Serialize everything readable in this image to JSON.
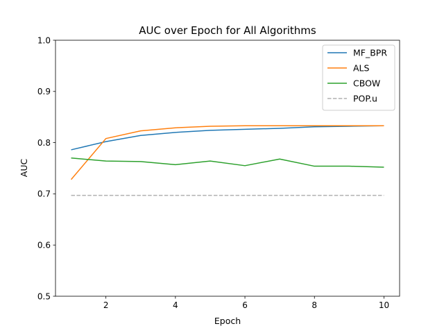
{
  "chart_data": {
    "type": "line",
    "title": "AUC over Epoch for All Algorithms",
    "xlabel": "Epoch",
    "ylabel": "AUC",
    "xlim": [
      0.55,
      10.45
    ],
    "ylim": [
      0.5,
      1.0
    ],
    "xticks": [
      2,
      4,
      6,
      8,
      10
    ],
    "yticks": [
      0.5,
      0.6,
      0.7,
      0.8,
      0.9,
      1.0
    ],
    "xtick_labels": [
      "2",
      "4",
      "6",
      "8",
      "10"
    ],
    "ytick_labels": [
      "0.5",
      "0.6",
      "0.7",
      "0.8",
      "0.9",
      "1.0"
    ],
    "grid": false,
    "legend_position": "top-right",
    "x": [
      1,
      2,
      3,
      4,
      5,
      6,
      7,
      8,
      9,
      10
    ],
    "series": [
      {
        "name": "MF_BPR",
        "color": "#1f77b4",
        "dash": "solid",
        "values": [
          0.786,
          0.802,
          0.814,
          0.82,
          0.824,
          0.826,
          0.828,
          0.831,
          0.832,
          0.833
        ]
      },
      {
        "name": "ALS",
        "color": "#ff7f0e",
        "dash": "solid",
        "values": [
          0.728,
          0.808,
          0.823,
          0.829,
          0.832,
          0.833,
          0.833,
          0.833,
          0.833,
          0.833
        ]
      },
      {
        "name": "CBOW",
        "color": "#2ca02c",
        "dash": "solid",
        "values": [
          0.77,
          0.764,
          0.763,
          0.757,
          0.764,
          0.755,
          0.768,
          0.754,
          0.754,
          0.752
        ]
      },
      {
        "name": "POP.u",
        "color": "#b0b0b0",
        "dash": "dashed",
        "values": [
          0.697,
          0.697,
          0.697,
          0.697,
          0.697,
          0.697,
          0.697,
          0.697,
          0.697,
          0.697
        ]
      }
    ]
  }
}
